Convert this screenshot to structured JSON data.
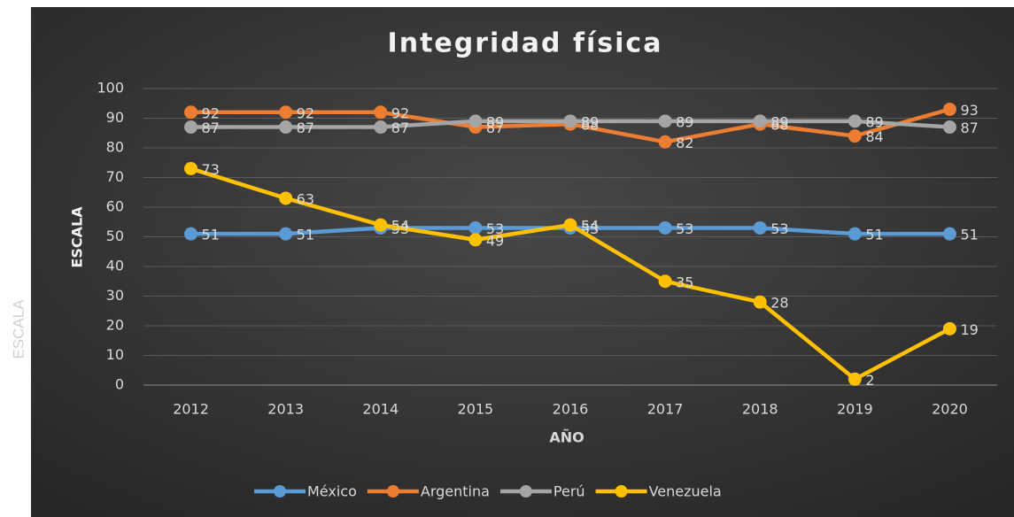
{
  "chart_data": {
    "type": "line",
    "title": "Integridad física",
    "side_label": "ESCALA",
    "x_label": "AÑO",
    "y_label": "ESCALA",
    "categories": [
      "2012",
      "2013",
      "2014",
      "2015",
      "2016",
      "2017",
      "2018",
      "2019",
      "2020"
    ],
    "series": [
      {
        "name": "México",
        "color": "#5b9bd5",
        "values": [
          51,
          51,
          53,
          53,
          53,
          53,
          53,
          51,
          51
        ]
      },
      {
        "name": "Argentina",
        "color": "#ed7d31",
        "values": [
          92,
          92,
          92,
          87,
          88,
          82,
          88,
          84,
          93
        ]
      },
      {
        "name": "Perú",
        "color": "#a5a5a5",
        "values": [
          87,
          87,
          87,
          89,
          89,
          89,
          89,
          89,
          87
        ]
      },
      {
        "name": "Venezuela",
        "color": "#ffc000",
        "values": [
          73,
          63,
          54,
          49,
          54,
          35,
          28,
          2,
          19
        ]
      }
    ],
    "ylim": [
      0,
      100
    ],
    "yticks": [
      0,
      10,
      20,
      30,
      40,
      50,
      60,
      70,
      80,
      90,
      100
    ],
    "grid": true,
    "legend": "bottom"
  }
}
